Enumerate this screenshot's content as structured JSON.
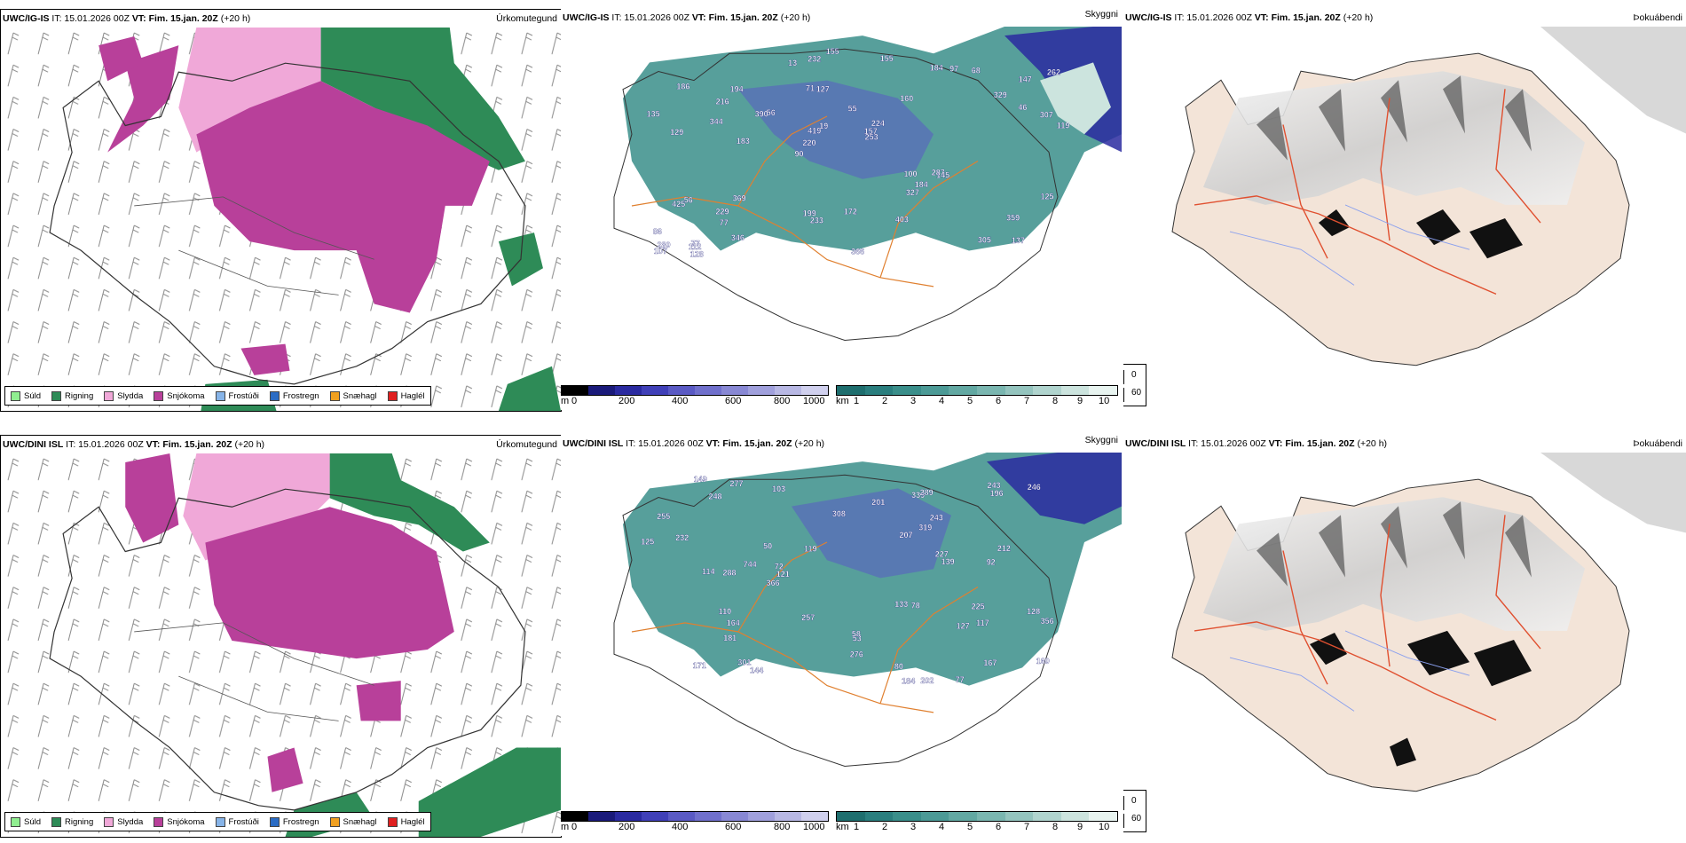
{
  "panels": [
    {
      "id": "r1c1",
      "model": "UWC/IG-IS",
      "it": "IT: 15.01.2026 00Z",
      "vt": "VT: Fim. 15.jan. 20Z",
      "lead": "(+20 h)",
      "field": "Úrkomutegund"
    },
    {
      "id": "r1c2",
      "model": "UWC/IG-IS",
      "it": "IT: 15.01.2026 00Z",
      "vt": "VT: Fim. 15.jan. 20Z",
      "lead": "(+20 h)",
      "field": "Skyggni"
    },
    {
      "id": "r1c3",
      "model": "UWC/IG-IS",
      "it": "IT: 15.01.2026 00Z",
      "vt": "VT: Fim. 15.jan. 20Z",
      "lead": "(+20 h)",
      "field": "Þokuábendi"
    },
    {
      "id": "r2c1",
      "model": "UWC/DINI ISL",
      "it": "IT: 15.01.2026 00Z",
      "vt": "VT: Fim. 15.jan. 20Z",
      "lead": "(+20 h)",
      "field": "Úrkomutegund"
    },
    {
      "id": "r2c2",
      "model": "UWC/DINI ISL",
      "it": "IT: 15.01.2026 00Z",
      "vt": "VT: Fim. 15.jan. 20Z",
      "lead": "(+20 h)",
      "field": "Skyggni"
    },
    {
      "id": "r2c3",
      "model": "UWC/DINI ISL",
      "it": "IT: 15.01.2026 00Z",
      "vt": "VT: Fim. 15.jan. 20Z",
      "lead": "(+20 h)",
      "field": "Þokuábendi"
    }
  ],
  "precip_legend": [
    {
      "label": "Súld",
      "color": "#90ee90"
    },
    {
      "label": "Rigning",
      "color": "#2e8b57"
    },
    {
      "label": "Slydda",
      "color": "#f0a8d8"
    },
    {
      "label": "Snjókoma",
      "color": "#b8409a"
    },
    {
      "label": "Frostúði",
      "color": "#87b4e8"
    },
    {
      "label": "Frostregn",
      "color": "#2b6cc4"
    },
    {
      "label": "Snæhagl",
      "color": "#f0a020"
    },
    {
      "label": "Haglél",
      "color": "#e02020"
    }
  ],
  "ceiling_bar": {
    "unit": "m",
    "ticks": [
      "0",
      "200",
      "400",
      "600",
      "800",
      "1000"
    ],
    "colors": [
      "#000000",
      "#1a1a7a",
      "#2a2aa0",
      "#4040b8",
      "#5a5ac4",
      "#7070cc",
      "#8888d4",
      "#a0a0dc",
      "#b8b8e4",
      "#d0d0ee"
    ]
  },
  "visibility_bar": {
    "unit": "km",
    "ticks": [
      "1",
      "2",
      "3",
      "4",
      "5",
      "6",
      "7",
      "8",
      "9",
      "10"
    ],
    "colors": [
      "#1e6e6e",
      "#2a7e7e",
      "#3a8e8a",
      "#4c9a96",
      "#62a8a2",
      "#7ab6b0",
      "#94c4be",
      "#b0d4ce",
      "#cce4de",
      "#e8f4f0"
    ]
  },
  "fog_key": [
    {
      "value": "0",
      "color": "#000000"
    },
    {
      "value": "60",
      "color": "#ffffff"
    }
  ],
  "ceiling_labels_top": [
    "137",
    "129",
    "147",
    "90",
    "160",
    "77",
    "71",
    "55",
    "56",
    "56",
    "86",
    "77",
    "127",
    "224",
    "145",
    "186",
    "232",
    "119",
    "100",
    "46",
    "220",
    "199",
    "419",
    "194",
    "184",
    "369",
    "305",
    "359",
    "287",
    "366",
    "390",
    "344",
    "327",
    "346",
    "307",
    "157",
    "280",
    "233",
    "253",
    "425",
    "329",
    "262",
    "184",
    "403",
    "229",
    "128",
    "107",
    "172",
    "68",
    "155",
    "183",
    "135",
    "216",
    "97",
    "112",
    "155",
    "13",
    "19",
    "125"
  ],
  "ceiling_labels_bottom": [
    "128",
    "77",
    "53",
    "171",
    "58",
    "50",
    "103",
    "243",
    "184",
    "92",
    "78",
    "196",
    "125",
    "227",
    "144",
    "248",
    "181",
    "301",
    "339",
    "308",
    "232",
    "225",
    "167",
    "114",
    "246",
    "207",
    "127",
    "257",
    "110",
    "744",
    "276",
    "212",
    "160",
    "80",
    "356",
    "288",
    "255",
    "243",
    "121",
    "149",
    "117",
    "319",
    "164",
    "277",
    "201",
    "133",
    "119",
    "72",
    "289",
    "202",
    "366",
    "139"
  ]
}
